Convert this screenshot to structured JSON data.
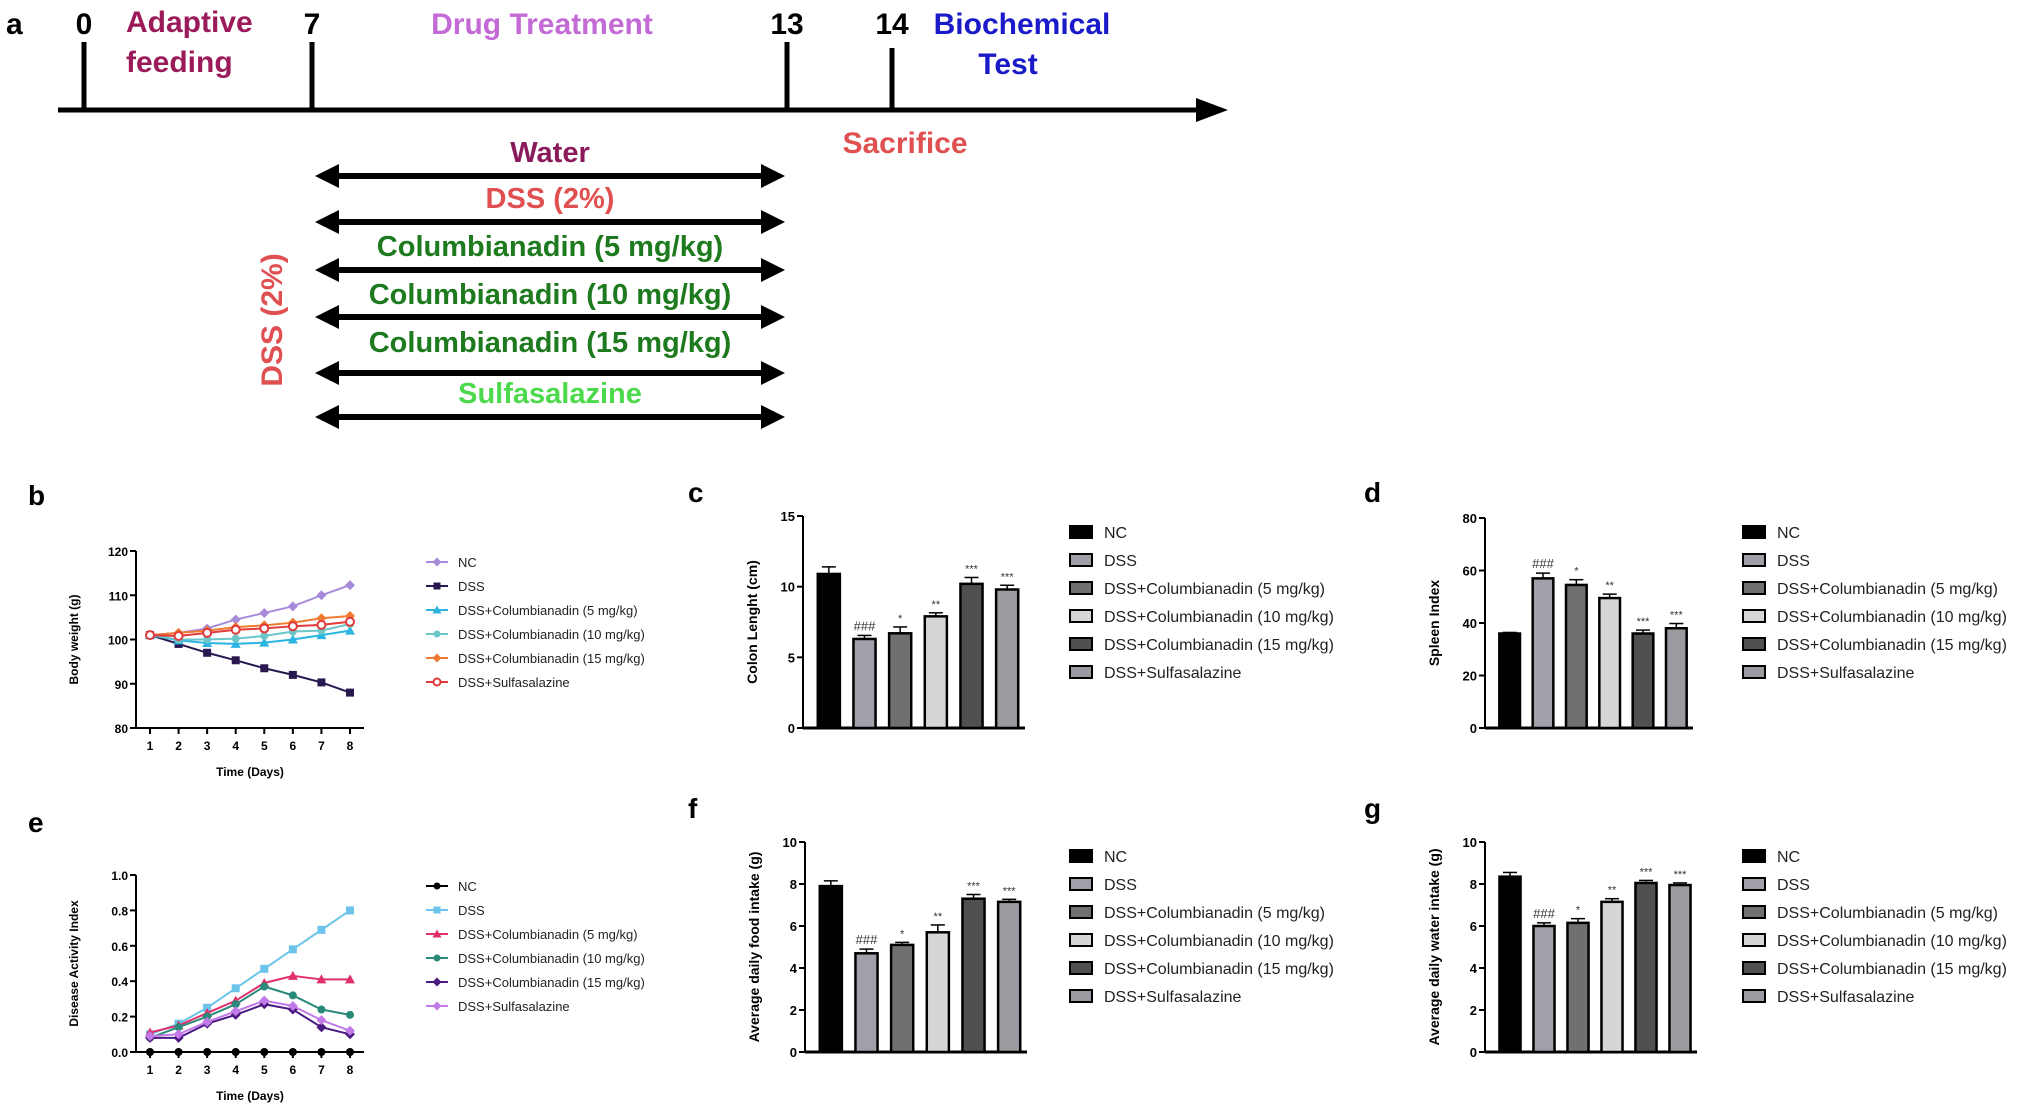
{
  "panel_labels": {
    "a": "a",
    "b": "b",
    "c": "c",
    "d": "d",
    "e": "e",
    "f": "f",
    "g": "g"
  },
  "timeline": {
    "ticks": [
      {
        "day": "0"
      },
      {
        "day": "7"
      },
      {
        "day": "13"
      },
      {
        "day": "14"
      }
    ],
    "phases": {
      "adaptive_line1": "Adaptive",
      "adaptive_line2": "feeding",
      "drug_treatment": "Drug Treatment",
      "biochemical_line1": "Biochemical",
      "biochemical_line2": "Test",
      "sacrifice": "Sacrifice"
    },
    "groups": [
      {
        "label": "Water",
        "color": "#8b1a5a"
      },
      {
        "label": "DSS (2%)",
        "color": "#e05050"
      },
      {
        "label": "Columbianadin (5 mg/kg)",
        "color": "#1e7a1e"
      },
      {
        "label": "Columbianadin (10 mg/kg)",
        "color": "#1e7a1e"
      },
      {
        "label": "Columbianadin (15 mg/kg)",
        "color": "#1e7a1e"
      },
      {
        "label": "Sulfasalazine",
        "color": "#4cd94c"
      }
    ],
    "side_label": "DSS (2%)",
    "colors": {
      "adaptive": "#9b1b5a",
      "drug": "#c36ad6",
      "biochemical": "#1a1ac8",
      "sacrifice": "#e05050"
    }
  },
  "chart_data": [
    {
      "id": "b",
      "type": "line",
      "title": "",
      "xlabel": "Time (Days)",
      "ylabel": "Body weight (g)",
      "x": [
        1,
        2,
        3,
        4,
        5,
        6,
        7,
        8
      ],
      "ylim": [
        80,
        120
      ],
      "yticks": [
        80,
        90,
        100,
        110,
        120
      ],
      "legend": "right",
      "series": [
        {
          "name": "NC",
          "color": "#a78bd8",
          "marker": "diamond",
          "values": [
            101,
            101.5,
            102.5,
            104.5,
            106,
            107.5,
            110,
            112.3
          ]
        },
        {
          "name": "DSS",
          "color": "#2a1850",
          "marker": "square",
          "values": [
            101,
            99,
            97,
            95.3,
            93.5,
            92,
            90.3,
            88
          ]
        },
        {
          "name": "DSS+Columbianadin (5 mg/kg)",
          "color": "#2ab4e0",
          "marker": "triangle",
          "values": [
            101,
            99.8,
            99.2,
            99,
            99.3,
            100,
            101,
            102
          ]
        },
        {
          "name": "DSS+Columbianadin (10 mg/kg)",
          "color": "#6cc6c8",
          "marker": "circle",
          "values": [
            101,
            100,
            100,
            100.2,
            100.8,
            101.8,
            102,
            103.5
          ]
        },
        {
          "name": "DSS+Columbianadin (15 mg/kg)",
          "color": "#f07a30",
          "marker": "diamond",
          "values": [
            101,
            101.5,
            102,
            102.8,
            103.2,
            103.8,
            104.8,
            105.3
          ]
        },
        {
          "name": "DSS+Sulfasalazine",
          "color": "#e03a3a",
          "marker": "circle-open",
          "values": [
            101,
            100.8,
            101.5,
            102.2,
            102.5,
            103,
            103.3,
            104
          ]
        }
      ]
    },
    {
      "id": "c",
      "type": "bar",
      "title": "",
      "xlabel": "",
      "ylabel": "Colon Lenght (cm)",
      "ylim": [
        0,
        15
      ],
      "yticks": [
        0,
        5,
        10,
        15
      ],
      "legend": "right",
      "categories": [
        "NC",
        "DSS",
        "DSS+Columbianadin (5 mg/kg)",
        "DSS+Columbianadin (10 mg/kg)",
        "DSS+Columbianadin (15 mg/kg)",
        "DSS+Sulfasalazine"
      ],
      "values": [
        10.9,
        6.3,
        6.7,
        7.9,
        10.2,
        9.8
      ],
      "errors": [
        0.5,
        0.25,
        0.45,
        0.25,
        0.45,
        0.3
      ],
      "annotations": [
        "",
        "###",
        "*",
        "**",
        "***",
        "***"
      ],
      "colors": [
        "#000000",
        "#a0a0a8",
        "#707070",
        "#d6d6d6",
        "#505050",
        "#9a9aa0"
      ]
    },
    {
      "id": "d",
      "type": "bar",
      "title": "",
      "xlabel": "",
      "ylabel": "Spleen Index",
      "ylim": [
        0,
        80
      ],
      "yticks": [
        0,
        20,
        40,
        60,
        80
      ],
      "legend": "right",
      "categories": [
        "NC",
        "DSS",
        "DSS+Columbianadin (5 mg/kg)",
        "DSS+Columbianadin (10 mg/kg)",
        "DSS+Columbianadin (15 mg/kg)",
        "DSS+Sulfasalazine"
      ],
      "values": [
        36,
        57,
        54.5,
        49.5,
        36,
        38
      ],
      "errors": [
        0.4,
        2,
        2,
        1.5,
        1.3,
        1.8
      ],
      "annotations": [
        "",
        "###",
        "*",
        "**",
        "***",
        "***"
      ],
      "colors": [
        "#000000",
        "#a0a0a8",
        "#707070",
        "#d6d6d6",
        "#505050",
        "#9a9aa0"
      ]
    },
    {
      "id": "e",
      "type": "line",
      "title": "",
      "xlabel": "Time (Days)",
      "ylabel": "Disease Activity Index",
      "x": [
        1,
        2,
        3,
        4,
        5,
        6,
        7,
        8
      ],
      "ylim": [
        0,
        1.0
      ],
      "yticks": [
        "0.0",
        "0.2",
        "0.4",
        "0.6",
        "0.8",
        "1.0"
      ],
      "legend": "right",
      "series": [
        {
          "name": "NC",
          "color": "#000000",
          "marker": "circle",
          "values": [
            0,
            0,
            0,
            0,
            0,
            0,
            0,
            0
          ]
        },
        {
          "name": "DSS",
          "color": "#6cc4ea",
          "marker": "square",
          "values": [
            0.1,
            0.16,
            0.25,
            0.36,
            0.47,
            0.58,
            0.69,
            0.8
          ]
        },
        {
          "name": "DSS+Columbianadin (5 mg/kg)",
          "color": "#e0306a",
          "marker": "triangle",
          "values": [
            0.11,
            0.15,
            0.22,
            0.29,
            0.39,
            0.43,
            0.41,
            0.41
          ]
        },
        {
          "name": "DSS+Columbianadin (10 mg/kg)",
          "color": "#2a8a7a",
          "marker": "circle",
          "values": [
            0.08,
            0.14,
            0.2,
            0.27,
            0.37,
            0.32,
            0.24,
            0.21
          ]
        },
        {
          "name": "DSS+Columbianadin (15 mg/kg)",
          "color": "#4a1a80",
          "marker": "diamond",
          "values": [
            0.08,
            0.08,
            0.16,
            0.21,
            0.27,
            0.24,
            0.14,
            0.1
          ]
        },
        {
          "name": "DSS+Sulfasalazine",
          "color": "#c27ae8",
          "marker": "diamond",
          "values": [
            0.09,
            0.1,
            0.17,
            0.23,
            0.29,
            0.26,
            0.18,
            0.12
          ]
        }
      ]
    },
    {
      "id": "f",
      "type": "bar",
      "title": "",
      "xlabel": "",
      "ylabel": "Average daily food intake (g)",
      "ylim": [
        0,
        10
      ],
      "yticks": [
        0,
        2,
        4,
        6,
        8,
        10
      ],
      "legend": "right",
      "categories": [
        "NC",
        "DSS",
        "DSS+Columbianadin (5 mg/kg)",
        "DSS+Columbianadin (10 mg/kg)",
        "DSS+Columbianadin (15 mg/kg)",
        "DSS+Sulfasalazine"
      ],
      "values": [
        7.9,
        4.7,
        5.1,
        5.7,
        7.3,
        7.15
      ],
      "errors": [
        0.25,
        0.2,
        0.12,
        0.35,
        0.2,
        0.12
      ],
      "annotations": [
        "",
        "###",
        "*",
        "**",
        "***",
        "***"
      ],
      "colors": [
        "#000000",
        "#a0a0a8",
        "#707070",
        "#d6d6d6",
        "#505050",
        "#9a9aa0"
      ]
    },
    {
      "id": "g",
      "type": "bar",
      "title": "",
      "xlabel": "",
      "ylabel": "Average daily water intake (g)",
      "ylim": [
        0,
        10
      ],
      "yticks": [
        0,
        2,
        4,
        6,
        8,
        10
      ],
      "legend": "right",
      "categories": [
        "NC",
        "DSS",
        "DSS+Columbianadin (5 mg/kg)",
        "DSS+Columbianadin (10 mg/kg)",
        "DSS+Columbianadin (15 mg/kg)",
        "DSS+Sulfasalazine"
      ],
      "values": [
        8.35,
        6.0,
        6.15,
        7.15,
        8.05,
        7.95
      ],
      "errors": [
        0.2,
        0.15,
        0.2,
        0.15,
        0.12,
        0.1
      ],
      "annotations": [
        "",
        "###",
        "*",
        "**",
        "***",
        "***"
      ],
      "colors": [
        "#000000",
        "#a0a0a8",
        "#707070",
        "#d6d6d6",
        "#505050",
        "#9a9aa0"
      ]
    }
  ]
}
